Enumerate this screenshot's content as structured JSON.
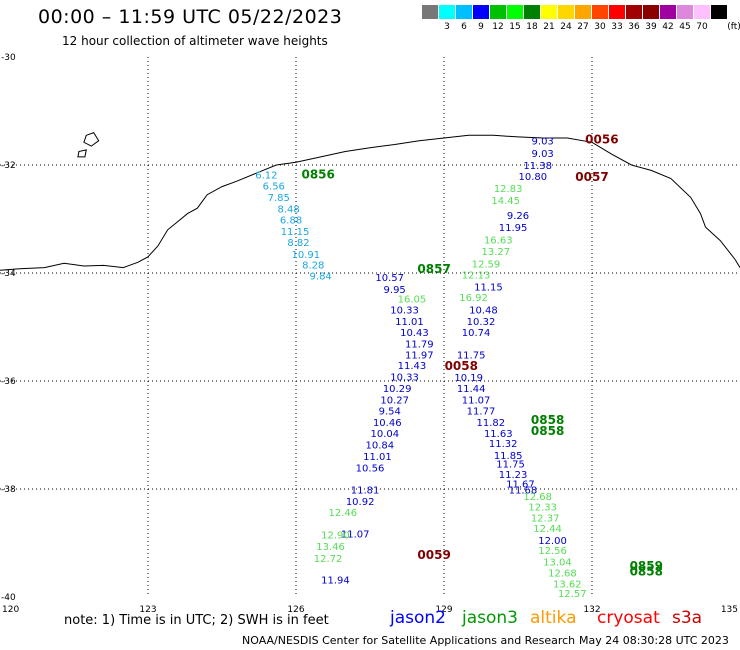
{
  "header": {
    "title": "00:00 – 11:59 UTC 05/22/2023",
    "subtitle": "12 hour collection of altimeter wave heights"
  },
  "color_scale": {
    "unit": "(ft)",
    "swatches": [
      {
        "label": "",
        "color": "#777777"
      },
      {
        "label": "3",
        "color": "#00ffff"
      },
      {
        "label": "6",
        "color": "#00bfff"
      },
      {
        "label": "9",
        "color": "#0000ff"
      },
      {
        "label": "12",
        "color": "#00c000"
      },
      {
        "label": "15",
        "color": "#00ff00"
      },
      {
        "label": "18",
        "color": "#008000"
      },
      {
        "label": "21",
        "color": "#ffff00"
      },
      {
        "label": "24",
        "color": "#ffd700"
      },
      {
        "label": "27",
        "color": "#ffa500"
      },
      {
        "label": "30",
        "color": "#ff4500"
      },
      {
        "label": "33",
        "color": "#ff0000"
      },
      {
        "label": "36",
        "color": "#a00000"
      },
      {
        "label": "39",
        "color": "#8b0000"
      },
      {
        "label": "42",
        "color": "#a000a0"
      },
      {
        "label": "45",
        "color": "#dd88dd"
      },
      {
        "label": "70",
        "color": "#ffc0ff"
      },
      {
        "label": "",
        "color": "#000000"
      }
    ]
  },
  "axes": {
    "lon_labels": [
      "120",
      "123",
      "126",
      "129",
      "132",
      "135"
    ],
    "lat_labels": [
      "-30",
      "-32",
      "-34",
      "-36",
      "-38",
      "-40"
    ]
  },
  "passes": {
    "jason2_blue": [
      {
        "v": "9.03",
        "lon": 131.0,
        "lat": -31.62
      },
      {
        "v": "9.03",
        "lon": 131.0,
        "lat": -31.85
      },
      {
        "v": "11.38",
        "lon": 130.9,
        "lat": -32.07
      },
      {
        "v": "10.80",
        "lon": 130.8,
        "lat": -32.28
      },
      {
        "v": "9.26",
        "lon": 130.5,
        "lat": -33.0
      },
      {
        "v": "11.95",
        "lon": 130.4,
        "lat": -33.22
      },
      {
        "v": "11.15",
        "lon": 129.9,
        "lat": -34.32
      },
      {
        "v": "10.48",
        "lon": 129.8,
        "lat": -34.75
      },
      {
        "v": "10.32",
        "lon": 129.75,
        "lat": -34.96
      },
      {
        "v": "10.74",
        "lon": 129.65,
        "lat": -35.17
      },
      {
        "v": "11.75",
        "lon": 129.55,
        "lat": -35.58
      },
      {
        "v": "10.19",
        "lon": 129.5,
        "lat": -36.0
      },
      {
        "v": "11.44",
        "lon": 129.55,
        "lat": -36.2
      },
      {
        "v": "11.07",
        "lon": 129.65,
        "lat": -36.42
      },
      {
        "v": "11.77",
        "lon": 129.75,
        "lat": -36.62
      },
      {
        "v": "11.82",
        "lon": 129.95,
        "lat": -36.83
      },
      {
        "v": "11.63",
        "lon": 130.1,
        "lat": -37.04
      },
      {
        "v": "11.32",
        "lon": 130.2,
        "lat": -37.22
      },
      {
        "v": "11.85",
        "lon": 130.3,
        "lat": -37.44
      },
      {
        "v": "11.75",
        "lon": 130.35,
        "lat": -37.6
      },
      {
        "v": "11.23",
        "lon": 130.4,
        "lat": -37.8
      },
      {
        "v": "11.67",
        "lon": 130.55,
        "lat": -37.97
      },
      {
        "v": "11.68",
        "lon": 130.6,
        "lat": -38.08
      },
      {
        "v": "12.00",
        "lon": 131.2,
        "lat": -39.02
      },
      {
        "v": "10.57",
        "lon": 127.9,
        "lat": -34.15
      },
      {
        "v": "9.95",
        "lon": 128.0,
        "lat": -34.37
      },
      {
        "v": "10.33",
        "lon": 128.2,
        "lat": -34.75
      },
      {
        "v": "11.01",
        "lon": 128.3,
        "lat": -34.96
      },
      {
        "v": "10.43",
        "lon": 128.4,
        "lat": -35.17
      },
      {
        "v": "11.79",
        "lon": 128.5,
        "lat": -35.38
      },
      {
        "v": "11.97",
        "lon": 128.5,
        "lat": -35.58
      },
      {
        "v": "11.43",
        "lon": 128.35,
        "lat": -35.78
      },
      {
        "v": "10.33",
        "lon": 128.2,
        "lat": -35.99
      },
      {
        "v": "10.29",
        "lon": 128.05,
        "lat": -36.2
      },
      {
        "v": "10.27",
        "lon": 128.0,
        "lat": -36.42
      },
      {
        "v": "9.54",
        "lon": 127.9,
        "lat": -36.62
      },
      {
        "v": "10.46",
        "lon": 127.85,
        "lat": -36.83
      },
      {
        "v": "10.04",
        "lon": 127.8,
        "lat": -37.04
      },
      {
        "v": "10.84",
        "lon": 127.7,
        "lat": -37.25
      },
      {
        "v": "11.01",
        "lon": 127.65,
        "lat": -37.46
      },
      {
        "v": "10.56",
        "lon": 127.5,
        "lat": -37.68
      },
      {
        "v": "11.81",
        "lon": 127.4,
        "lat": -38.08
      },
      {
        "v": "10.92",
        "lon": 127.3,
        "lat": -38.3
      },
      {
        "v": "11.07",
        "lon": 127.2,
        "lat": -38.9
      },
      {
        "v": "11.94",
        "lon": 126.8,
        "lat": -39.75
      }
    ],
    "jason2_cyan": [
      {
        "v": "6.12",
        "lon": 125.4,
        "lat": -32.25
      },
      {
        "v": "6.56",
        "lon": 125.55,
        "lat": -32.45
      },
      {
        "v": "7.85",
        "lon": 125.65,
        "lat": -32.67
      },
      {
        "v": "8.48",
        "lon": 125.85,
        "lat": -32.88
      },
      {
        "v": "6.88",
        "lon": 125.9,
        "lat": -33.08
      },
      {
        "v": "11.15",
        "lon": 125.98,
        "lat": -33.3
      },
      {
        "v": "8.82",
        "lon": 126.05,
        "lat": -33.5
      },
      {
        "v": "10.91",
        "lon": 126.2,
        "lat": -33.72
      },
      {
        "v": "8.28",
        "lon": 126.35,
        "lat": -33.92
      },
      {
        "v": "9.84",
        "lon": 126.5,
        "lat": -34.12
      }
    ],
    "jason3_green": [
      {
        "v": "12.83",
        "lon": 130.3,
        "lat": -32.5
      },
      {
        "v": "14.45",
        "lon": 130.25,
        "lat": -32.72
      },
      {
        "v": "16.63",
        "lon": 130.1,
        "lat": -33.45
      },
      {
        "v": "13.27",
        "lon": 130.05,
        "lat": -33.67
      },
      {
        "v": "12.59",
        "lon": 129.85,
        "lat": -33.9
      },
      {
        "v": "12.13",
        "lon": 129.65,
        "lat": -34.1
      },
      {
        "v": "16.92",
        "lon": 129.6,
        "lat": -34.52
      },
      {
        "v": "16.05",
        "lon": 128.35,
        "lat": -34.55
      },
      {
        "v": "12.46",
        "lon": 126.95,
        "lat": -38.5
      },
      {
        "v": "12.90",
        "lon": 126.8,
        "lat": -38.92
      },
      {
        "v": "13.46",
        "lon": 126.7,
        "lat": -39.13
      },
      {
        "v": "12.72",
        "lon": 126.65,
        "lat": -39.35
      },
      {
        "v": "12.68",
        "lon": 130.9,
        "lat": -38.2
      },
      {
        "v": "12.33",
        "lon": 131.0,
        "lat": -38.4
      },
      {
        "v": "12.37",
        "lon": 131.05,
        "lat": -38.6
      },
      {
        "v": "12.44",
        "lon": 131.1,
        "lat": -38.8
      },
      {
        "v": "12.56",
        "lon": 131.2,
        "lat": -39.2
      },
      {
        "v": "13.04",
        "lon": 131.3,
        "lat": -39.42
      },
      {
        "v": "12.68",
        "lon": 131.4,
        "lat": -39.62
      },
      {
        "v": "13.62",
        "lon": 131.5,
        "lat": -39.82
      },
      {
        "v": "12.57",
        "lon": 131.6,
        "lat": -40.0
      }
    ],
    "time_labels": [
      {
        "v": "0056",
        "lon": 132.2,
        "lat": -31.6,
        "color": "#800000"
      },
      {
        "v": "0057",
        "lon": 132.0,
        "lat": -32.3,
        "color": "#800000"
      },
      {
        "v": "0856",
        "lon": 126.45,
        "lat": -32.25,
        "color": "#008000"
      },
      {
        "v": "0857",
        "lon": 128.8,
        "lat": -34.0,
        "color": "#008000"
      },
      {
        "v": "0058",
        "lon": 129.35,
        "lat": -35.8,
        "color": "#800000"
      },
      {
        "v": "0858",
        "lon": 131.1,
        "lat": -36.8,
        "color": "#008000"
      },
      {
        "v": "0858",
        "lon": 131.1,
        "lat": -37.0,
        "color": "#008000"
      },
      {
        "v": "0059",
        "lon": 128.8,
        "lat": -39.3,
        "color": "#800000"
      },
      {
        "v": "0859",
        "lon": 133.1,
        "lat": -39.5,
        "color": "#008000"
      },
      {
        "v": "0858",
        "lon": 133.1,
        "lat": -39.6,
        "color": "#008000"
      }
    ]
  },
  "footer": {
    "note": "note:  1) Time is in UTC; 2) SWH is in feet",
    "legend": [
      {
        "name": "jason2",
        "color": "#0000ff"
      },
      {
        "name": "jason3",
        "color": "#009900"
      },
      {
        "name": "altika",
        "color": "#ff9900"
      },
      {
        "name": "cryosat",
        "color": "#ff0000"
      },
      {
        "name": "s3a",
        "color": "#cc0000"
      }
    ],
    "credit": "NOAA/NESDIS Center for Satellite Applications and Research",
    "timestamp": "May 24 08:30:28 UTC 2023"
  }
}
